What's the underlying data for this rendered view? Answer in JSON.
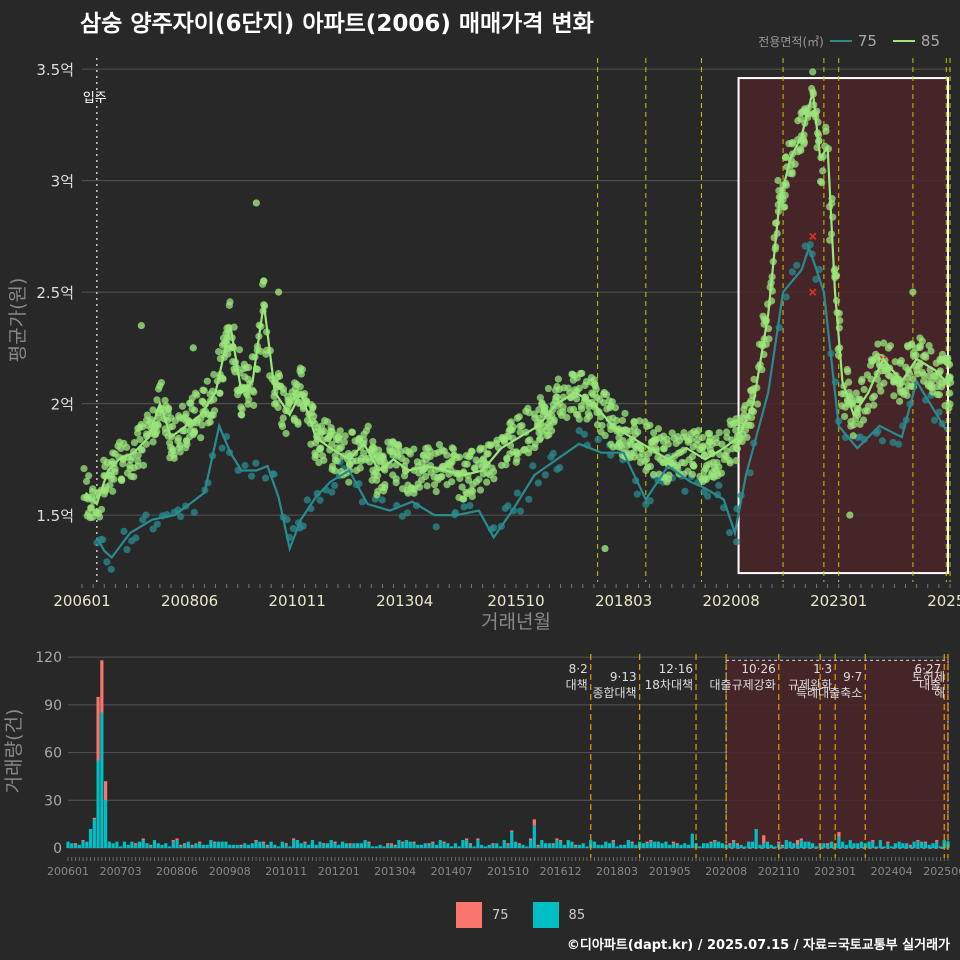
{
  "page": {
    "title": "삼숭 양주자이(6단지) 아파트(2006) 매매가격 변화",
    "credit": "©디아파트(dapt.kr) / 2025.07.15 / 자료=국토교통부 실거래가"
  },
  "legend_top": {
    "title": "전용면적(㎡)",
    "items": [
      {
        "label": "75",
        "color": "#2a8b8f"
      },
      {
        "label": "85",
        "color": "#9be67c"
      }
    ]
  },
  "legend_bottom": {
    "items": [
      {
        "label": "75",
        "color": "#f8766d"
      },
      {
        "label": "85",
        "color": "#00bfc4"
      }
    ]
  },
  "chart_data": [
    {
      "type": "line",
      "ylabel": "평균가(원)",
      "xlabel": "거래년월",
      "ylim": [
        1.2,
        3.55
      ],
      "y_unit": "억",
      "yticks": [
        1.5,
        2,
        2.5,
        3,
        3.5
      ],
      "ytick_labels": [
        "1.5억",
        "2억",
        "2.5억",
        "3억",
        "3.5억"
      ],
      "xlim": [
        "2006-01",
        "2025-07"
      ],
      "xticks": [
        "2006-01",
        "2008-06",
        "2010-11",
        "2013-04",
        "2015-10",
        "2018-03",
        "2020-08",
        "2023-01",
        "2025-06"
      ],
      "xtick_labels": [
        "200601",
        "200806",
        "201011",
        "201304",
        "201510",
        "201803",
        "202008",
        "202301",
        "2025"
      ],
      "annotation_move_in": {
        "date": "2006-05",
        "label": "입주"
      },
      "highlight_range": [
        "2020-10",
        "2025-07"
      ],
      "policy_lines": [
        "2017-08",
        "2018-09",
        "2019-12",
        "2021-10",
        "2022-09",
        "2023-01",
        "2024-09",
        "2025-06",
        "2025-07"
      ],
      "series": [
        {
          "name": "75",
          "points": [
            [
              "2006-05",
              1.4
            ],
            [
              "2006-07",
              1.34
            ],
            [
              "2006-09",
              1.31
            ],
            [
              "2007-02",
              1.42
            ],
            [
              "2007-08",
              1.48
            ],
            [
              "2008-02",
              1.5
            ],
            [
              "2008-06",
              1.55
            ],
            [
              "2008-10",
              1.6
            ],
            [
              "2009-02",
              1.9
            ],
            [
              "2009-05",
              1.78
            ],
            [
              "2009-08",
              1.7
            ],
            [
              "2009-12",
              1.7
            ],
            [
              "2010-03",
              1.72
            ],
            [
              "2010-06",
              1.58
            ],
            [
              "2010-09",
              1.35
            ],
            [
              "2010-12",
              1.48
            ],
            [
              "2011-04",
              1.58
            ],
            [
              "2011-08",
              1.65
            ],
            [
              "2012-01",
              1.7
            ],
            [
              "2012-06",
              1.55
            ],
            [
              "2012-12",
              1.52
            ],
            [
              "2013-06",
              1.56
            ],
            [
              "2013-12",
              1.5
            ],
            [
              "2014-06",
              1.5
            ],
            [
              "2014-12",
              1.52
            ],
            [
              "2015-04",
              1.4
            ],
            [
              "2015-09",
              1.52
            ],
            [
              "2016-03",
              1.68
            ],
            [
              "2016-09",
              1.75
            ],
            [
              "2017-03",
              1.82
            ],
            [
              "2017-09",
              1.78
            ],
            [
              "2018-03",
              1.78
            ],
            [
              "2018-09",
              1.57
            ],
            [
              "2019-03",
              1.72
            ],
            [
              "2019-09",
              1.65
            ],
            [
              "2020-01",
              1.62
            ],
            [
              "2020-06",
              1.57
            ],
            [
              "2020-09",
              1.42
            ],
            [
              "2020-12",
              1.68
            ],
            [
              "2021-06",
              2.05
            ],
            [
              "2021-10",
              2.5
            ],
            [
              "2022-03",
              2.6
            ],
            [
              "2022-05",
              2.7
            ],
            [
              "2022-09",
              2.5
            ],
            [
              "2023-01",
              1.9
            ],
            [
              "2023-06",
              1.8
            ],
            [
              "2023-12",
              1.9
            ],
            [
              "2024-06",
              1.85
            ],
            [
              "2024-10",
              2.1
            ],
            [
              "2025-06",
              1.88
            ]
          ]
        },
        {
          "name": "85",
          "points": [
            [
              "2006-02",
              1.6
            ],
            [
              "2006-05",
              1.55
            ],
            [
              "2006-08",
              1.7
            ],
            [
              "2006-11",
              1.75
            ],
            [
              "2007-03",
              1.78
            ],
            [
              "2007-07",
              1.85
            ],
            [
              "2007-10",
              2.0
            ],
            [
              "2008-01",
              1.85
            ],
            [
              "2008-05",
              1.9
            ],
            [
              "2008-09",
              1.95
            ],
            [
              "2009-01",
              2.05
            ],
            [
              "2009-05",
              2.35
            ],
            [
              "2009-08",
              2.05
            ],
            [
              "2009-11",
              2.1
            ],
            [
              "2010-02",
              2.45
            ],
            [
              "2010-05",
              2.05
            ],
            [
              "2010-09",
              1.95
            ],
            [
              "2010-12",
              2.05
            ],
            [
              "2011-04",
              1.85
            ],
            [
              "2011-08",
              1.8
            ],
            [
              "2012-01",
              1.75
            ],
            [
              "2012-05",
              1.82
            ],
            [
              "2012-09",
              1.7
            ],
            [
              "2013-01",
              1.75
            ],
            [
              "2013-05",
              1.7
            ],
            [
              "2013-10",
              1.72
            ],
            [
              "2014-03",
              1.7
            ],
            [
              "2014-08",
              1.68
            ],
            [
              "2015-01",
              1.7
            ],
            [
              "2015-06",
              1.8
            ],
            [
              "2015-11",
              1.85
            ],
            [
              "2016-04",
              1.9
            ],
            [
              "2016-09",
              2.0
            ],
            [
              "2017-02",
              2.05
            ],
            [
              "2017-07",
              2.0
            ],
            [
              "2017-12",
              1.9
            ],
            [
              "2018-05",
              1.85
            ],
            [
              "2018-10",
              1.8
            ],
            [
              "2019-03",
              1.75
            ],
            [
              "2019-08",
              1.8
            ],
            [
              "2020-01",
              1.75
            ],
            [
              "2020-06",
              1.8
            ],
            [
              "2020-10",
              1.85
            ],
            [
              "2021-02",
              2.0
            ],
            [
              "2021-06",
              2.4
            ],
            [
              "2021-09",
              2.9
            ],
            [
              "2021-12",
              3.1
            ],
            [
              "2022-03",
              3.2
            ],
            [
              "2022-06",
              3.4
            ],
            [
              "2022-08",
              3.1
            ],
            [
              "2022-10",
              3.15
            ],
            [
              "2022-12",
              2.5
            ],
            [
              "2023-02",
              2.1
            ],
            [
              "2023-05",
              1.95
            ],
            [
              "2023-09",
              2.05
            ],
            [
              "2024-01",
              2.2
            ],
            [
              "2024-06",
              2.1
            ],
            [
              "2024-10",
              2.2
            ],
            [
              "2025-03",
              2.15
            ],
            [
              "2025-07",
              2.08
            ]
          ]
        }
      ]
    },
    {
      "type": "bar",
      "ylabel": "거래량(건)",
      "ylim": [
        0,
        122
      ],
      "yticks": [
        0,
        30,
        60,
        90,
        120
      ],
      "xticks": [
        "2006-01",
        "2007-03",
        "2008-06",
        "2009-08",
        "2010-11",
        "2012-01",
        "2013-04",
        "2014-07",
        "2015-10",
        "2016-12",
        "2018-03",
        "2019-05",
        "2020-08",
        "2021-10",
        "2023-01",
        "2024-04",
        "2025-06"
      ],
      "xtick_labels": [
        "200601",
        "200703",
        "200806",
        "200908",
        "201011",
        "201201",
        "201304",
        "201407",
        "201510",
        "201612",
        "201803",
        "201905",
        "202008",
        "202110",
        "202301",
        "202404",
        "202506"
      ],
      "highlight_range": [
        "2020-08",
        "2025-07"
      ],
      "policy_annotations": [
        {
          "date": "2017-08",
          "label": "8·2 대책"
        },
        {
          "date": "2018-09",
          "label": "9·13 종합대책"
        },
        {
          "date": "2019-12",
          "label": "12·16 18차대책"
        },
        {
          "date": "2020-08",
          "label": ""
        },
        {
          "date": "2021-10",
          "label": "10·26 대출규제강화"
        },
        {
          "date": "2022-09",
          "label": ""
        },
        {
          "date": "2023-01",
          "label": "1·3 규제완화"
        },
        {
          "date": "2023-09",
          "label": "9·7 특례대출축소"
        },
        {
          "date": "2025-06",
          "label": "6·27 대출"
        },
        {
          "date": "2025-07",
          "label": "토허제 해"
        }
      ],
      "series": [
        {
          "name": "75",
          "spikes": [
            [
              "2006-09",
              95
            ],
            [
              "2006-10",
              118
            ],
            [
              "2006-11",
              42
            ],
            [
              "2016-05",
              18
            ],
            [
              "2016-10",
              3
            ],
            [
              "2021-06",
              8
            ],
            [
              "2022-03",
              5
            ],
            [
              "2023-02",
              10
            ]
          ]
        },
        {
          "name": "85",
          "spikes": [
            [
              "2006-08",
              18
            ],
            [
              "2006-09",
              55
            ],
            [
              "2006-10",
              85
            ],
            [
              "2006-11",
              30
            ],
            [
              "2006-07",
              12
            ],
            [
              "2016-05",
              14
            ],
            [
              "2015-11",
              10
            ],
            [
              "2019-11",
              9
            ],
            [
              "2021-04",
              12
            ],
            [
              "2023-02",
              7
            ]
          ]
        }
      ]
    }
  ]
}
